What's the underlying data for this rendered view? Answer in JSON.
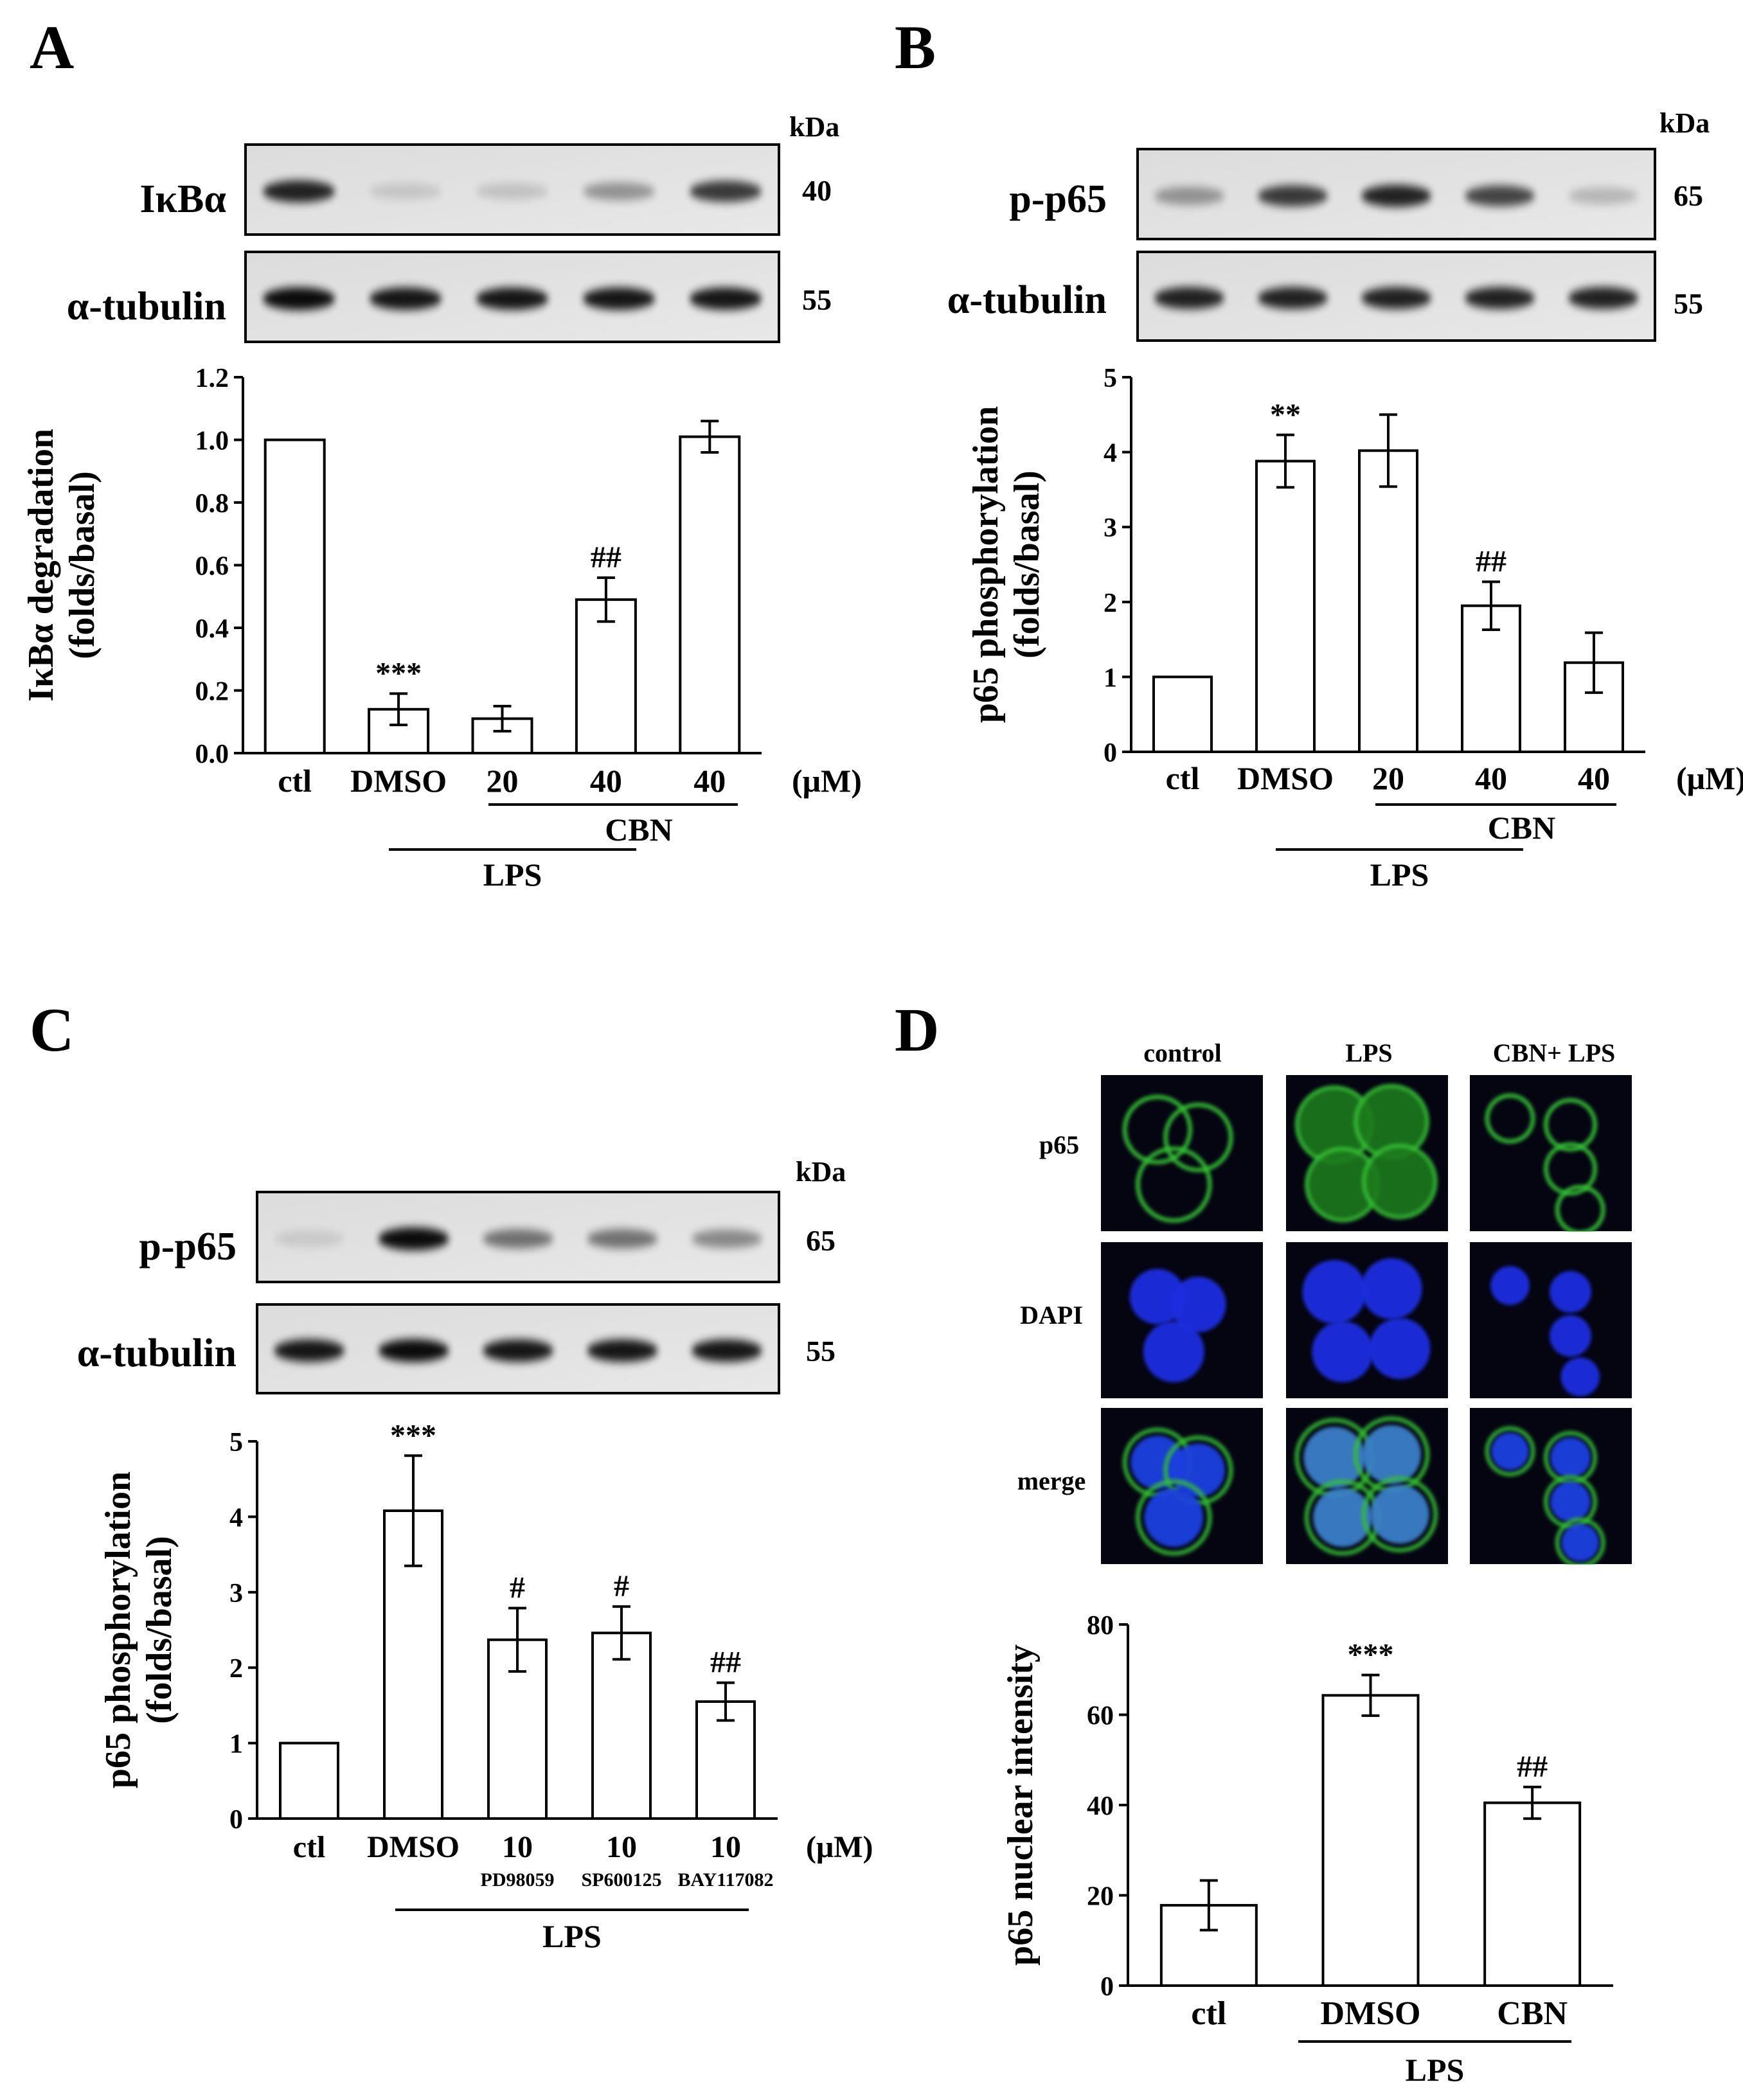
{
  "panels": [
    {
      "letter": "A",
      "blot": {
        "unit": "kDa",
        "rows": [
          {
            "protein": "IκBα",
            "kda": "40",
            "bands": [
              0.85,
              0.12,
              0.14,
              0.35,
              0.75
            ]
          },
          {
            "protein": "α-tubulin",
            "kda": "55",
            "bands": [
              0.95,
              0.9,
              0.9,
              0.9,
              0.9
            ]
          }
        ]
      },
      "chart_data": {
        "type": "bar",
        "categories": [
          "ctl",
          "DMSO",
          "20",
          "40",
          "40"
        ],
        "unit_label": "(μM)",
        "values": [
          1.0,
          0.14,
          0.11,
          0.49,
          1.01
        ],
        "errors": [
          0,
          0.05,
          0.04,
          0.07,
          0.05
        ],
        "annotations": [
          "",
          "***",
          "",
          "##",
          ""
        ],
        "ylabel": [
          "IκBα degradation",
          "(folds/basal)"
        ],
        "ylim": [
          0,
          1.2
        ],
        "yticks": [
          "0.0",
          "0.2",
          "0.4",
          "0.6",
          "0.8",
          "1.0",
          "1.2"
        ],
        "groups": [
          {
            "label": "CBN",
            "from": 2,
            "to": 4
          },
          {
            "label": "LPS",
            "from": 1,
            "to": 3
          }
        ]
      }
    },
    {
      "letter": "B",
      "blot": {
        "unit": "kDa",
        "rows": [
          {
            "protein": "p-p65",
            "kda": "65",
            "bands": [
              0.35,
              0.75,
              0.85,
              0.7,
              0.2
            ]
          },
          {
            "protein": "α-tubulin",
            "kda": "55",
            "bands": [
              0.85,
              0.85,
              0.85,
              0.85,
              0.85
            ]
          }
        ]
      },
      "chart_data": {
        "type": "bar",
        "categories": [
          "ctl",
          "DMSO",
          "20",
          "40",
          "40"
        ],
        "unit_label": "(μM)",
        "values": [
          1.0,
          3.88,
          4.02,
          1.95,
          1.19
        ],
        "errors": [
          0,
          0.35,
          0.48,
          0.32,
          0.4
        ],
        "annotations": [
          "",
          "**",
          "",
          "##",
          ""
        ],
        "ylabel": [
          "p65 phosphorylation",
          "(folds/basal)"
        ],
        "ylim": [
          0,
          5
        ],
        "yticks": [
          "0",
          "1",
          "2",
          "3",
          "4",
          "5"
        ],
        "groups": [
          {
            "label": "CBN",
            "from": 2,
            "to": 4
          },
          {
            "label": "LPS",
            "from": 1,
            "to": 3
          }
        ]
      }
    },
    {
      "letter": "C",
      "blot": {
        "unit": "kDa",
        "rows": [
          {
            "protein": "p-p65",
            "kda": "65",
            "bands": [
              0.1,
              0.95,
              0.5,
              0.5,
              0.4
            ]
          },
          {
            "protein": "α-tubulin",
            "kda": "55",
            "bands": [
              0.9,
              0.95,
              0.9,
              0.9,
              0.9
            ]
          }
        ]
      },
      "chart_data": {
        "type": "bar",
        "categories": [
          "ctl",
          "DMSO",
          "10",
          "10",
          "10"
        ],
        "unit_label": "(μM)",
        "sublabels": [
          "",
          "",
          "PD98059",
          "SP600125",
          "BAY117082"
        ],
        "values": [
          1.0,
          4.08,
          2.37,
          2.46,
          1.55
        ],
        "errors": [
          0,
          0.73,
          0.42,
          0.35,
          0.25
        ],
        "annotations": [
          "",
          "***",
          "#",
          "#",
          "##"
        ],
        "ylabel": [
          "p65 phosphorylation",
          "(folds/basal)"
        ],
        "ylim": [
          0,
          5
        ],
        "yticks": [
          "0",
          "1",
          "2",
          "3",
          "4",
          "5"
        ],
        "groups": [
          {
            "label": "LPS",
            "from": 1,
            "to": 4
          }
        ]
      }
    },
    {
      "letter": "D",
      "micro": {
        "columns": [
          "control",
          "LPS",
          "CBN+ LPS"
        ],
        "rows": [
          "p65",
          "DAPI",
          "merge"
        ]
      },
      "chart_data": {
        "type": "bar",
        "categories": [
          "ctl",
          "DMSO",
          "CBN"
        ],
        "values": [
          17.8,
          64.3,
          40.5
        ],
        "errors": [
          5.5,
          4.5,
          3.5
        ],
        "annotations": [
          "",
          "***",
          "##"
        ],
        "ylabel": [
          "p65 nuclear intensity"
        ],
        "ylim": [
          0,
          80
        ],
        "yticks": [
          "0",
          "20",
          "40",
          "60",
          "80"
        ],
        "groups": [
          {
            "label": "LPS",
            "from": 1,
            "to": 2
          }
        ]
      }
    }
  ]
}
